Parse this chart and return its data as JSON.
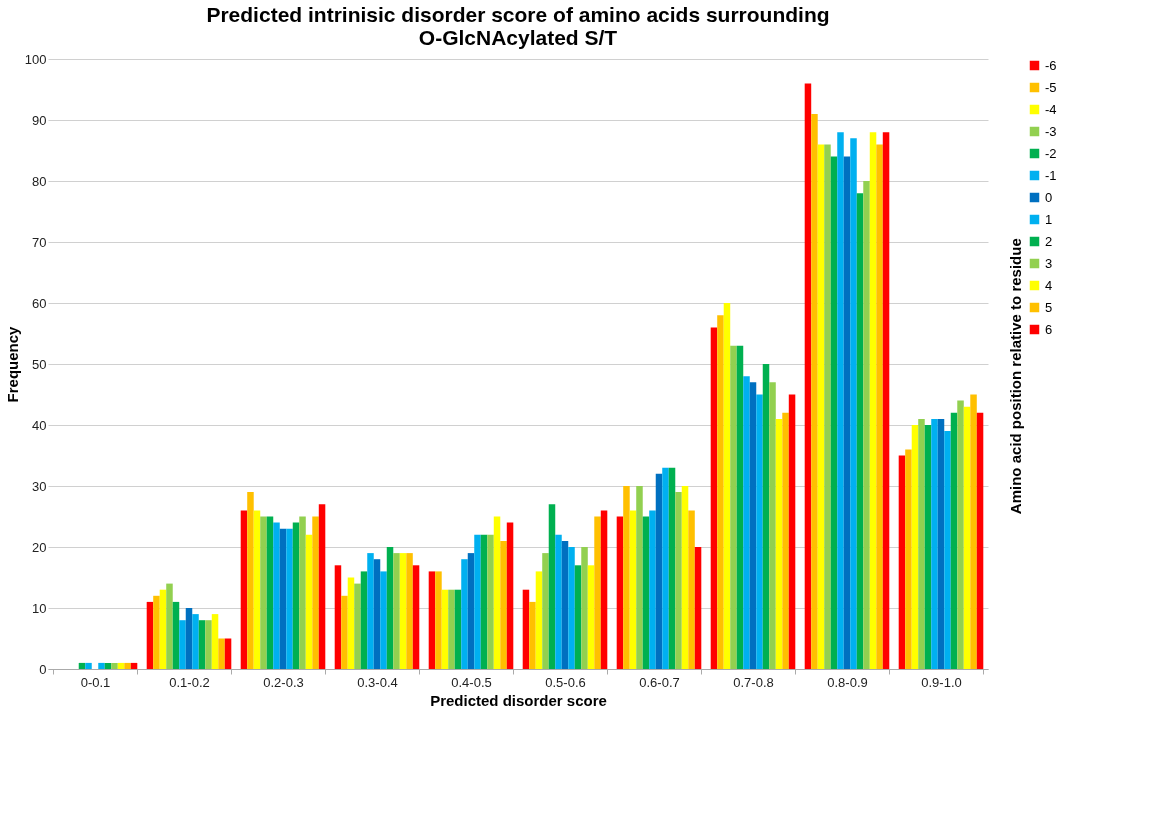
{
  "chart_data": {
    "type": "bar",
    "title": [
      "Predicted intrinisic disorder score of amino acids surrounding",
      "O-GlcNAcylated S/T"
    ],
    "xlabel": "Predicted disorder score",
    "ylabel": "Frequency",
    "legend_title": "Amino acid position relative to residue",
    "legend": "right",
    "grid": "y",
    "ylim": [
      0,
      100
    ],
    "yticks": [
      0,
      10,
      20,
      30,
      40,
      50,
      60,
      70,
      80,
      90,
      100
    ],
    "categories": [
      "0-0.1",
      "0.1-0.2",
      "0.2-0.3",
      "0.3-0.4",
      "0.4-0.5",
      "0.5-0.6",
      "0.6-0.7",
      "0.7-0.8",
      "0.8-0.9",
      "0.9-1.0"
    ],
    "series": [
      {
        "name": "-6",
        "color": "#ff0000",
        "values": [
          0,
          11,
          26,
          17,
          16,
          13,
          25,
          56,
          96,
          35
        ]
      },
      {
        "name": "-5",
        "color": "#ffc000",
        "values": [
          0,
          12,
          29,
          12,
          16,
          11,
          30,
          58,
          91,
          36
        ]
      },
      {
        "name": "-4",
        "color": "#ffff00",
        "values": [
          0,
          13,
          26,
          15,
          13,
          16,
          26,
          60,
          86,
          40
        ]
      },
      {
        "name": "-3",
        "color": "#92d050",
        "values": [
          0,
          14,
          25,
          14,
          13,
          19,
          30,
          53,
          86,
          41
        ]
      },
      {
        "name": "-2",
        "color": "#00b050",
        "values": [
          1,
          11,
          25,
          16,
          13,
          27,
          25,
          53,
          84,
          40
        ]
      },
      {
        "name": "-1",
        "color": "#00b0f0",
        "values": [
          1,
          8,
          24,
          19,
          18,
          22,
          26,
          48,
          88,
          41
        ]
      },
      {
        "name": "0",
        "color": "#0070c0",
        "values": [
          0,
          10,
          23,
          18,
          19,
          21,
          32,
          47,
          84,
          41
        ]
      },
      {
        "name": "1",
        "color": "#00b0f0",
        "values": [
          1,
          9,
          23,
          16,
          22,
          20,
          33,
          45,
          87,
          39
        ]
      },
      {
        "name": "2",
        "color": "#00b050",
        "values": [
          1,
          8,
          24,
          20,
          22,
          17,
          33,
          50,
          78,
          42
        ]
      },
      {
        "name": "3",
        "color": "#92d050",
        "values": [
          1,
          8,
          25,
          19,
          22,
          20,
          29,
          47,
          80,
          44
        ]
      },
      {
        "name": "4",
        "color": "#ffff00",
        "values": [
          1,
          9,
          22,
          19,
          25,
          17,
          30,
          41,
          88,
          43
        ]
      },
      {
        "name": "5",
        "color": "#ffc000",
        "values": [
          1,
          5,
          25,
          19,
          21,
          25,
          26,
          42,
          86,
          45
        ]
      },
      {
        "name": "6",
        "color": "#ff0000",
        "values": [
          1,
          5,
          27,
          17,
          24,
          26,
          20,
          45,
          88,
          42
        ]
      }
    ]
  }
}
